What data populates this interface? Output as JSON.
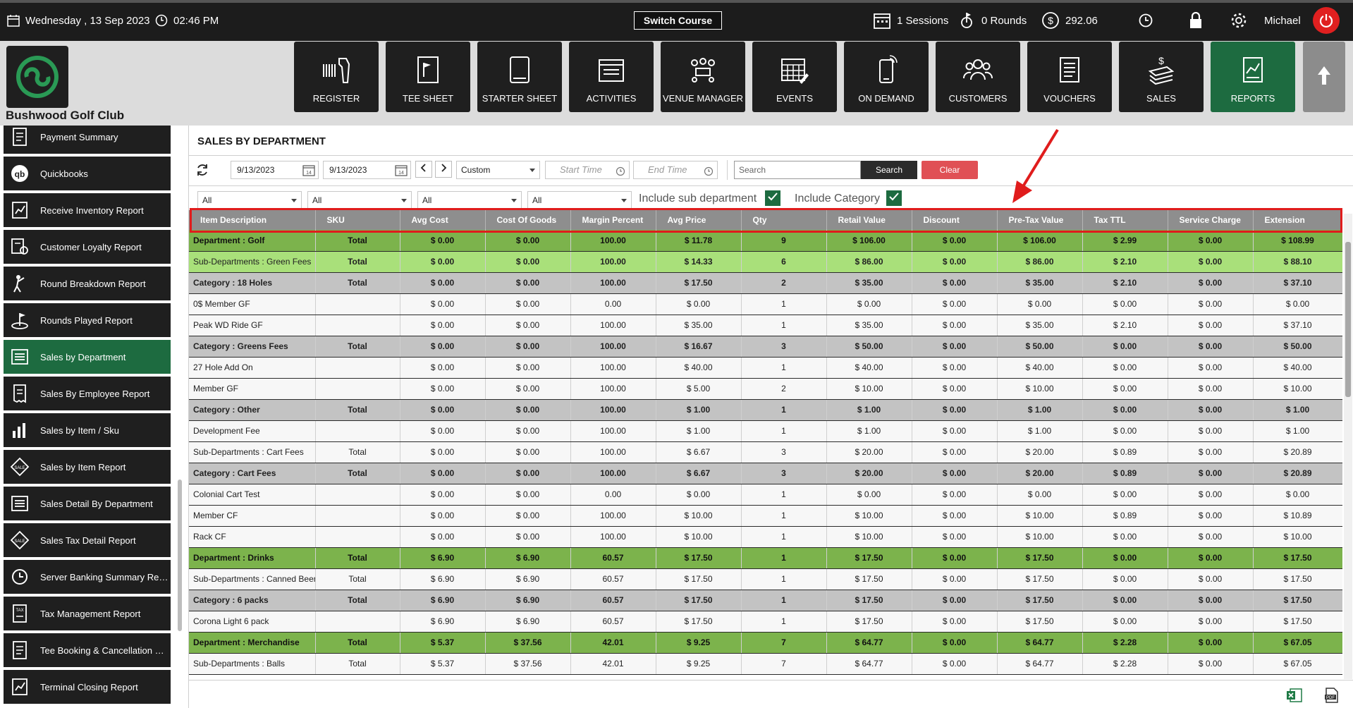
{
  "topbar": {
    "date": "Wednesday ,  13 Sep 2023",
    "time": "02:46 PM",
    "switch_course": "Switch Course",
    "sessions": "1 Sessions",
    "rounds": "0 Rounds",
    "balance": "292.06",
    "user": "Michael"
  },
  "club": {
    "name": "Bushwood Golf Club"
  },
  "nav": [
    {
      "label": "REGISTER",
      "icon": "barcode-scanner-icon"
    },
    {
      "label": "TEE SHEET",
      "icon": "flag-sheet-icon"
    },
    {
      "label": "STARTER SHEET",
      "icon": "tablet-icon"
    },
    {
      "label": "ACTIVITIES",
      "icon": "calendar-icon"
    },
    {
      "label": "VENUE MANAGER",
      "icon": "venue-icon"
    },
    {
      "label": "EVENTS",
      "icon": "calendar-edit-icon"
    },
    {
      "label": "ON DEMAND",
      "icon": "phone-icon"
    },
    {
      "label": "CUSTOMERS",
      "icon": "customers-icon"
    },
    {
      "label": "VOUCHERS",
      "icon": "voucher-icon"
    },
    {
      "label": "SALES",
      "icon": "sales-icon"
    },
    {
      "label": "REPORTS",
      "icon": "reports-icon"
    }
  ],
  "sidebar": {
    "items": [
      {
        "label": "Payment Summary"
      },
      {
        "label": "Quickbooks"
      },
      {
        "label": "Receive Inventory Report"
      },
      {
        "label": "Customer Loyalty Report"
      },
      {
        "label": "Round Breakdown Report"
      },
      {
        "label": "Rounds Played Report"
      },
      {
        "label": "Sales by Department"
      },
      {
        "label": "Sales By Employee Report"
      },
      {
        "label": "Sales by Item / Sku"
      },
      {
        "label": "Sales by Item Report"
      },
      {
        "label": "Sales Detail By Department"
      },
      {
        "label": "Sales Tax Detail Report"
      },
      {
        "label": "Server Banking Summary Report"
      },
      {
        "label": "Tax Management Report"
      },
      {
        "label": "Tee Booking & Cancellation Re..."
      },
      {
        "label": "Terminal Closing Report"
      }
    ]
  },
  "report": {
    "title": "SALES BY DEPARTMENT",
    "start_date": "9/13/2023",
    "end_date": "9/13/2023",
    "period": "Custom",
    "start_time_placeholder": "Start Time",
    "end_time_placeholder": "End Time",
    "search_placeholder": "Search",
    "search_label": "Search",
    "clear_label": "Clear",
    "filters": [
      "All",
      "All",
      "All",
      "All"
    ],
    "include_sub_department": "Include sub department",
    "include_category": "Include Category",
    "cal_day": "14"
  },
  "table": {
    "columns": [
      "Item Description",
      "SKU",
      "Avg Cost",
      "Cost Of Goods",
      "Margin Percent",
      "Avg Price",
      "Qty",
      "Retail Value",
      "Discount",
      "Pre-Tax Value",
      "Tax TTL",
      "Service Charge",
      "Extension"
    ],
    "rows": [
      {
        "type": "dept",
        "cells": [
          "Department : Golf",
          "Total",
          "$ 0.00",
          "$ 0.00",
          "100.00",
          "$ 11.78",
          "9",
          "$ 106.00",
          "$ 0.00",
          "$ 106.00",
          "$ 2.99",
          "$ 0.00",
          "$ 108.99"
        ]
      },
      {
        "type": "subdept",
        "cells": [
          "Sub-Departments : Green Fees",
          "Total",
          "$ 0.00",
          "$ 0.00",
          "100.00",
          "$ 14.33",
          "6",
          "$ 86.00",
          "$ 0.00",
          "$ 86.00",
          "$ 2.10",
          "$ 0.00",
          "$ 88.10"
        ]
      },
      {
        "type": "cat",
        "cells": [
          "Category : 18 Holes",
          "Total",
          "$ 0.00",
          "$ 0.00",
          "100.00",
          "$ 17.50",
          "2",
          "$ 35.00",
          "$ 0.00",
          "$ 35.00",
          "$ 2.10",
          "$ 0.00",
          "$ 37.10"
        ]
      },
      {
        "type": "item",
        "cells": [
          "0$ Member GF",
          "",
          "$ 0.00",
          "$ 0.00",
          "0.00",
          "$ 0.00",
          "1",
          "$ 0.00",
          "$ 0.00",
          "$ 0.00",
          "$ 0.00",
          "$ 0.00",
          "$ 0.00"
        ]
      },
      {
        "type": "item",
        "cells": [
          "Peak WD Ride GF",
          "",
          "$ 0.00",
          "$ 0.00",
          "100.00",
          "$ 35.00",
          "1",
          "$ 35.00",
          "$ 0.00",
          "$ 35.00",
          "$ 2.10",
          "$ 0.00",
          "$ 37.10"
        ]
      },
      {
        "type": "cat",
        "cells": [
          "Category : Greens Fees",
          "Total",
          "$ 0.00",
          "$ 0.00",
          "100.00",
          "$ 16.67",
          "3",
          "$ 50.00",
          "$ 0.00",
          "$ 50.00",
          "$ 0.00",
          "$ 0.00",
          "$ 50.00"
        ]
      },
      {
        "type": "item",
        "cells": [
          "27 Hole Add On",
          "",
          "$ 0.00",
          "$ 0.00",
          "100.00",
          "$ 40.00",
          "1",
          "$ 40.00",
          "$ 0.00",
          "$ 40.00",
          "$ 0.00",
          "$ 0.00",
          "$ 40.00"
        ]
      },
      {
        "type": "item",
        "cells": [
          "Member GF",
          "",
          "$ 0.00",
          "$ 0.00",
          "100.00",
          "$ 5.00",
          "2",
          "$ 10.00",
          "$ 0.00",
          "$ 10.00",
          "$ 0.00",
          "$ 0.00",
          "$ 10.00"
        ]
      },
      {
        "type": "cat",
        "cells": [
          "Category : Other",
          "Total",
          "$ 0.00",
          "$ 0.00",
          "100.00",
          "$ 1.00",
          "1",
          "$ 1.00",
          "$ 0.00",
          "$ 1.00",
          "$ 0.00",
          "$ 0.00",
          "$ 1.00"
        ]
      },
      {
        "type": "item",
        "cells": [
          "Development Fee",
          "",
          "$ 0.00",
          "$ 0.00",
          "100.00",
          "$ 1.00",
          "1",
          "$ 1.00",
          "$ 0.00",
          "$ 1.00",
          "$ 0.00",
          "$ 0.00",
          "$ 1.00"
        ]
      },
      {
        "type": "item",
        "cells": [
          "Sub-Departments : Cart Fees",
          "Total",
          "$ 0.00",
          "$ 0.00",
          "100.00",
          "$ 6.67",
          "3",
          "$ 20.00",
          "$ 0.00",
          "$ 20.00",
          "$ 0.89",
          "$ 0.00",
          "$ 20.89"
        ]
      },
      {
        "type": "cat",
        "cells": [
          "Category : Cart Fees",
          "Total",
          "$ 0.00",
          "$ 0.00",
          "100.00",
          "$ 6.67",
          "3",
          "$ 20.00",
          "$ 0.00",
          "$ 20.00",
          "$ 0.89",
          "$ 0.00",
          "$ 20.89"
        ]
      },
      {
        "type": "item",
        "cells": [
          "Colonial Cart Test",
          "",
          "$ 0.00",
          "$ 0.00",
          "0.00",
          "$ 0.00",
          "1",
          "$ 0.00",
          "$ 0.00",
          "$ 0.00",
          "$ 0.00",
          "$ 0.00",
          "$ 0.00"
        ]
      },
      {
        "type": "item",
        "cells": [
          "Member CF",
          "",
          "$ 0.00",
          "$ 0.00",
          "100.00",
          "$ 10.00",
          "1",
          "$ 10.00",
          "$ 0.00",
          "$ 10.00",
          "$ 0.89",
          "$ 0.00",
          "$ 10.89"
        ]
      },
      {
        "type": "item",
        "cells": [
          "Rack CF",
          "",
          "$ 0.00",
          "$ 0.00",
          "100.00",
          "$ 10.00",
          "1",
          "$ 10.00",
          "$ 0.00",
          "$ 10.00",
          "$ 0.00",
          "$ 0.00",
          "$ 10.00"
        ]
      },
      {
        "type": "dept",
        "cells": [
          "Department : Drinks",
          "Total",
          "$ 6.90",
          "$ 6.90",
          "60.57",
          "$ 17.50",
          "1",
          "$ 17.50",
          "$ 0.00",
          "$ 17.50",
          "$ 0.00",
          "$ 0.00",
          "$ 17.50"
        ]
      },
      {
        "type": "item",
        "cells": [
          "Sub-Departments : Canned Beer",
          "Total",
          "$ 6.90",
          "$ 6.90",
          "60.57",
          "$ 17.50",
          "1",
          "$ 17.50",
          "$ 0.00",
          "$ 17.50",
          "$ 0.00",
          "$ 0.00",
          "$ 17.50"
        ]
      },
      {
        "type": "cat",
        "cells": [
          "Category : 6 packs",
          "Total",
          "$ 6.90",
          "$ 6.90",
          "60.57",
          "$ 17.50",
          "1",
          "$ 17.50",
          "$ 0.00",
          "$ 17.50",
          "$ 0.00",
          "$ 0.00",
          "$ 17.50"
        ]
      },
      {
        "type": "item",
        "cells": [
          "Corona Light 6 pack",
          "",
          "$ 6.90",
          "$ 6.90",
          "60.57",
          "$ 17.50",
          "1",
          "$ 17.50",
          "$ 0.00",
          "$ 17.50",
          "$ 0.00",
          "$ 0.00",
          "$ 17.50"
        ]
      },
      {
        "type": "dept",
        "cells": [
          "Department : Merchandise",
          "Total",
          "$ 5.37",
          "$ 37.56",
          "42.01",
          "$ 9.25",
          "7",
          "$ 64.77",
          "$ 0.00",
          "$ 64.77",
          "$ 2.28",
          "$ 0.00",
          "$ 67.05"
        ]
      },
      {
        "type": "item",
        "cells": [
          "Sub-Departments : Balls",
          "Total",
          "$ 5.37",
          "$ 37.56",
          "42.01",
          "$ 9.25",
          "7",
          "$ 64.77",
          "$ 0.00",
          "$ 64.77",
          "$ 2.28",
          "$ 0.00",
          "$ 67.05"
        ]
      }
    ]
  },
  "colors": {
    "dept_row": "#7cb34c",
    "subdept_row": "#a9e07a",
    "category_row": "#c3c3c3",
    "accent_active": "#1d6b40",
    "highlight": "#e01c1c"
  }
}
